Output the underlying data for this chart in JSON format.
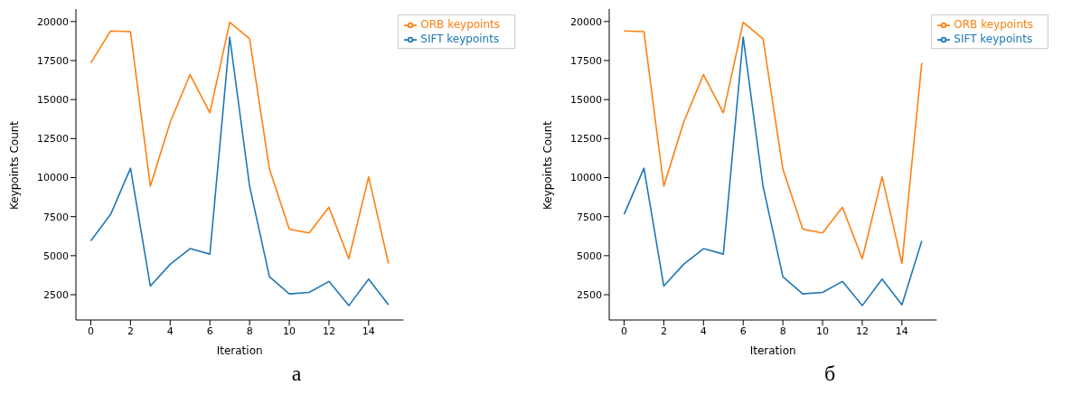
{
  "chart_data": [
    {
      "type": "line",
      "xlabel": "Iteration",
      "ylabel": "Keypoints Count",
      "x": [
        0,
        1,
        2,
        3,
        4,
        5,
        6,
        7,
        8,
        9,
        10,
        11,
        12,
        13,
        14,
        15
      ],
      "xlim": [
        -0.75,
        15.75
      ],
      "xticks": [
        0,
        2,
        4,
        6,
        8,
        10,
        12,
        14
      ],
      "ylim": [
        880,
        20800
      ],
      "yticks": [
        2500,
        5000,
        7500,
        10000,
        12500,
        15000,
        17500,
        20000
      ],
      "legend": "top right",
      "grid": false,
      "marker": "none",
      "line_style": "solid",
      "annotations": [
        "а"
      ],
      "series": [
        {
          "name": "SIFT keypoints",
          "color": "#1f77b4",
          "values": [
            5950,
            7650,
            10600,
            3050,
            4450,
            5450,
            5100,
            19000,
            9450,
            3650,
            2550,
            2650,
            3350,
            1800,
            3500,
            1850
          ]
        },
        {
          "name": "ORB keypoints",
          "color": "#ff7f0e",
          "values": [
            17350,
            19400,
            19350,
            9450,
            13550,
            16600,
            14150,
            19950,
            18900,
            10550,
            6700,
            6450,
            8100,
            4800,
            10050,
            4500
          ]
        }
      ]
    },
    {
      "type": "line",
      "xlabel": "Iteration",
      "ylabel": "Keypoints Count",
      "x": [
        0,
        1,
        2,
        3,
        4,
        5,
        6,
        7,
        8,
        9,
        10,
        11,
        12,
        13,
        14,
        15
      ],
      "xlim": [
        -0.75,
        15.75
      ],
      "xticks": [
        0,
        2,
        4,
        6,
        8,
        10,
        12,
        14
      ],
      "ylim": [
        880,
        20800
      ],
      "yticks": [
        2500,
        5000,
        7500,
        10000,
        12500,
        15000,
        17500,
        20000
      ],
      "legend": "top right",
      "grid": false,
      "marker": "none",
      "line_style": "solid",
      "annotations": [
        "б"
      ],
      "series": [
        {
          "name": "SIFT keypoints",
          "color": "#1f77b4",
          "values": [
            7650,
            10600,
            3050,
            4450,
            5450,
            5100,
            19000,
            9450,
            3650,
            2550,
            2650,
            3350,
            1800,
            3500,
            1850,
            5950
          ]
        },
        {
          "name": "ORB keypoints",
          "color": "#ff7f0e",
          "values": [
            19400,
            19350,
            9450,
            13550,
            16600,
            14150,
            19950,
            18900,
            10550,
            6700,
            6450,
            8100,
            4800,
            10050,
            4500,
            17350
          ]
        }
      ]
    }
  ]
}
